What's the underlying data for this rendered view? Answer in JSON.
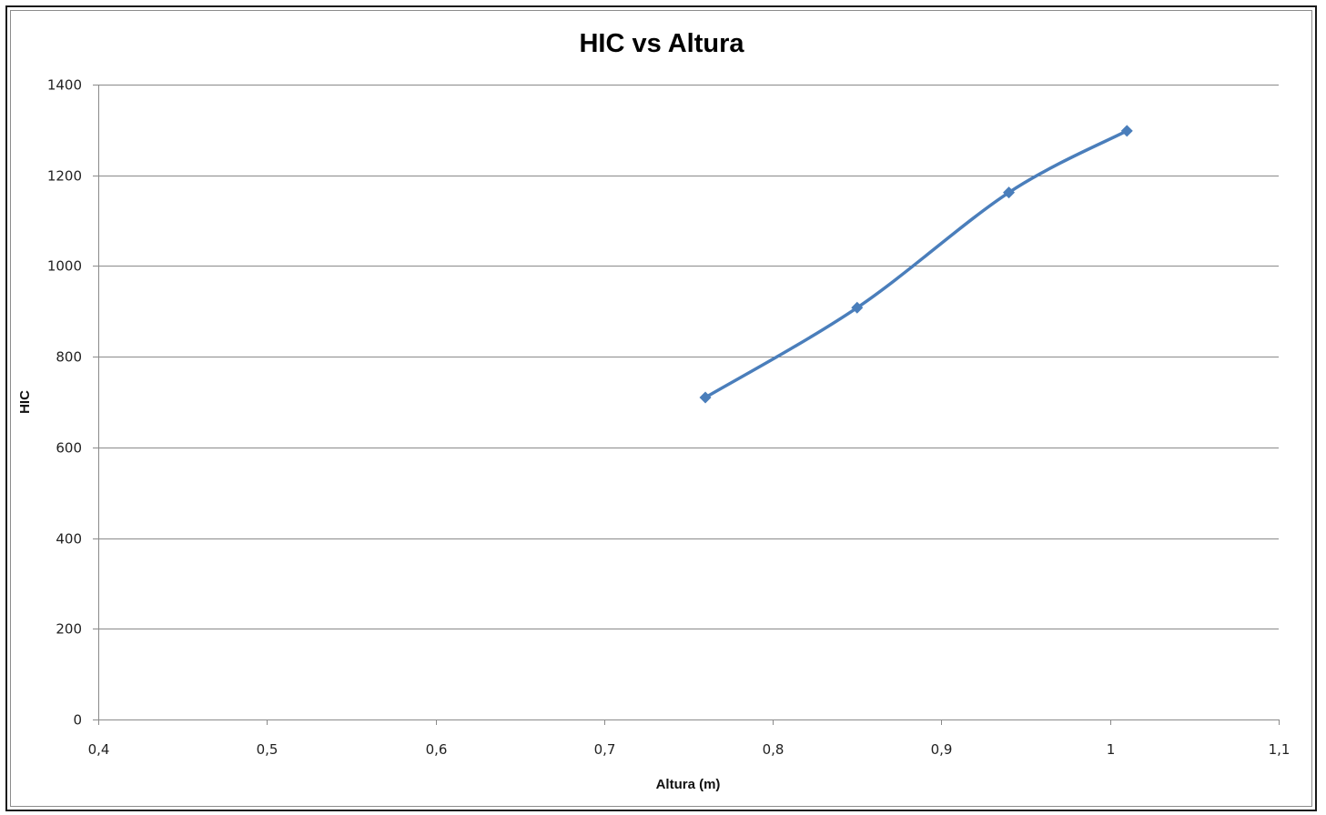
{
  "chart_data": {
    "type": "line",
    "title": "HIC vs Altura",
    "xlabel": "Altura (m)",
    "ylabel": "HIC",
    "xlim": [
      0.4,
      1.1
    ],
    "ylim": [
      0,
      1400
    ],
    "x_ticks": [
      "0,4",
      "0,5",
      "0,6",
      "0,7",
      "0,8",
      "0,9",
      "1",
      "1,1"
    ],
    "x_tick_values": [
      0.4,
      0.5,
      0.6,
      0.7,
      0.8,
      0.9,
      1.0,
      1.1
    ],
    "y_ticks": [
      "0",
      "200",
      "400",
      "600",
      "800",
      "1000",
      "1200",
      "1400"
    ],
    "y_tick_values": [
      0,
      200,
      400,
      600,
      800,
      1000,
      1200,
      1400
    ],
    "grid": true,
    "legend": "none",
    "smooth": true,
    "marker": "diamond",
    "series": [
      {
        "x": [
          0.76,
          0.85,
          0.94,
          1.01
        ],
        "y": [
          710,
          908,
          1162,
          1298
        ],
        "color": "#4a7ebb"
      }
    ]
  }
}
